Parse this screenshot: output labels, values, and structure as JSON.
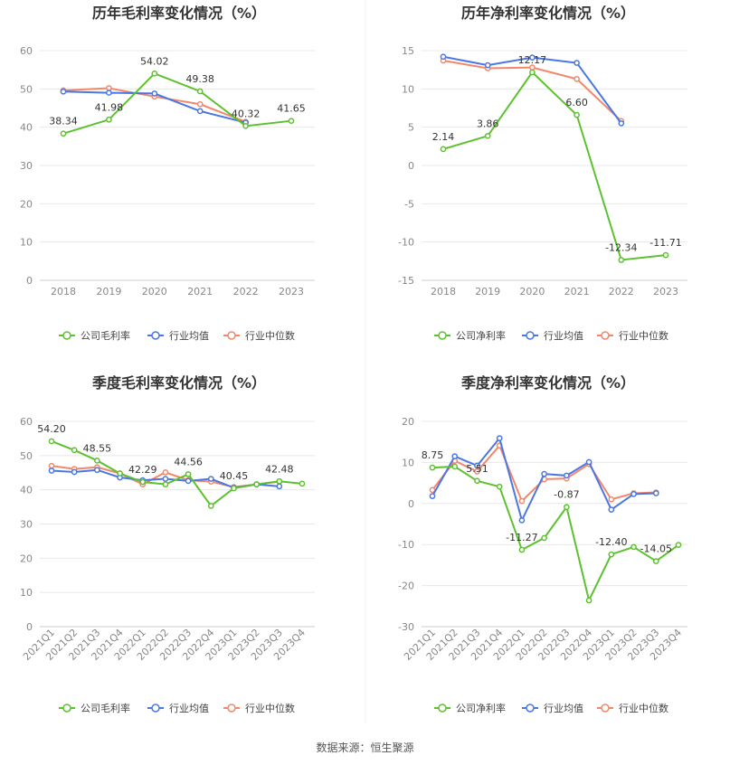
{
  "footer": "数据来源：恒生聚源",
  "colors": {
    "company": "#5dc12f",
    "industry_avg": "#4a77e3",
    "industry_median": "#f2876b"
  },
  "chart_data": [
    {
      "type": "line",
      "title": "历年毛利率变化情况（%）",
      "categories": [
        "2018",
        "2019",
        "2020",
        "2021",
        "2022",
        "2023"
      ],
      "ylim": [
        0,
        60
      ],
      "yticks": [
        0,
        10,
        20,
        30,
        40,
        50,
        60
      ],
      "grid": true,
      "legend": "bottom",
      "series": [
        {
          "name": "公司毛利率",
          "values": [
            38.34,
            41.98,
            54.02,
            49.38,
            40.32,
            41.65
          ],
          "labels": [
            "38.34",
            "41.98",
            "54.02",
            "49.38",
            "40.32",
            "41.65"
          ]
        },
        {
          "name": "行业均值",
          "values": [
            49.3,
            49.0,
            48.8,
            44.2,
            41.2,
            null
          ]
        },
        {
          "name": "行业中位数",
          "values": [
            49.6,
            50.2,
            48.0,
            46.0,
            41.4,
            null
          ]
        }
      ]
    },
    {
      "type": "line",
      "title": "历年净利率变化情况（%）",
      "categories": [
        "2018",
        "2019",
        "2020",
        "2021",
        "2022",
        "2023"
      ],
      "ylim": [
        -15,
        15
      ],
      "yticks": [
        -15,
        -10,
        -5,
        0,
        5,
        10,
        15
      ],
      "grid": true,
      "legend": "bottom",
      "series": [
        {
          "name": "公司净利率",
          "values": [
            2.14,
            3.86,
            12.17,
            6.6,
            -12.34,
            -11.71
          ],
          "labels": [
            "2.14",
            "3.86",
            "12.17",
            "6.60",
            "-12.34",
            "-11.71"
          ]
        },
        {
          "name": "行业均值",
          "values": [
            14.2,
            13.1,
            14.1,
            13.4,
            5.5,
            null
          ]
        },
        {
          "name": "行业中位数",
          "values": [
            13.7,
            12.7,
            12.8,
            11.3,
            5.8,
            null
          ]
        }
      ]
    },
    {
      "type": "line",
      "title": "季度毛利率变化情况（%）",
      "categories": [
        "2021Q1",
        "2021Q2",
        "2021Q3",
        "2021Q4",
        "2022Q1",
        "2022Q2",
        "2022Q3",
        "2022Q4",
        "2023Q1",
        "2023Q2",
        "2023Q3",
        "2023Q4"
      ],
      "ylim": [
        0,
        60
      ],
      "yticks": [
        0,
        10,
        20,
        30,
        40,
        50,
        60
      ],
      "grid": true,
      "legend": "bottom",
      "series": [
        {
          "name": "公司毛利率",
          "values": [
            54.2,
            51.6,
            48.55,
            44.8,
            42.29,
            41.6,
            44.56,
            35.3,
            40.45,
            41.6,
            42.48,
            41.8
          ],
          "labels": [
            "54.20",
            "",
            "48.55",
            "",
            "42.29",
            "",
            "44.56",
            "",
            "40.45",
            "",
            "42.48",
            ""
          ]
        },
        {
          "name": "行业均值",
          "values": [
            45.6,
            45.2,
            45.8,
            43.6,
            42.8,
            43.2,
            42.6,
            43.2,
            40.6,
            41.6,
            41.0,
            null
          ]
        },
        {
          "name": "行业中位数",
          "values": [
            47.0,
            46.1,
            46.6,
            44.8,
            41.6,
            45.1,
            42.8,
            42.4,
            40.8,
            41.6,
            42.4,
            null
          ]
        }
      ]
    },
    {
      "type": "line",
      "title": "季度净利率变化情况（%）",
      "categories": [
        "2021Q1",
        "2021Q2",
        "2021Q3",
        "2021Q4",
        "2022Q1",
        "2022Q2",
        "2022Q3",
        "2022Q4",
        "2023Q1",
        "2023Q2",
        "2023Q3",
        "2023Q4"
      ],
      "ylim": [
        -30,
        20
      ],
      "yticks": [
        -30,
        -20,
        -10,
        0,
        10,
        20
      ],
      "grid": true,
      "legend": "bottom",
      "series": [
        {
          "name": "公司净利率",
          "values": [
            8.75,
            9.0,
            5.51,
            4.1,
            -11.27,
            -8.4,
            -0.87,
            -23.6,
            -12.4,
            -10.6,
            -14.05,
            -10.1
          ],
          "labels": [
            "8.75",
            "",
            "5.51",
            "",
            "-11.27",
            "",
            "-0.87",
            "",
            "-12.40",
            "",
            "-14.05",
            ""
          ]
        },
        {
          "name": "行业均值",
          "values": [
            1.8,
            11.5,
            9.2,
            15.9,
            -4.1,
            7.2,
            6.8,
            10.1,
            -1.5,
            2.3,
            2.5,
            null
          ]
        },
        {
          "name": "行业中位数",
          "values": [
            3.3,
            10.4,
            7.8,
            14.1,
            0.6,
            5.9,
            6.1,
            9.6,
            1.0,
            2.5,
            2.7,
            null
          ]
        }
      ]
    }
  ]
}
